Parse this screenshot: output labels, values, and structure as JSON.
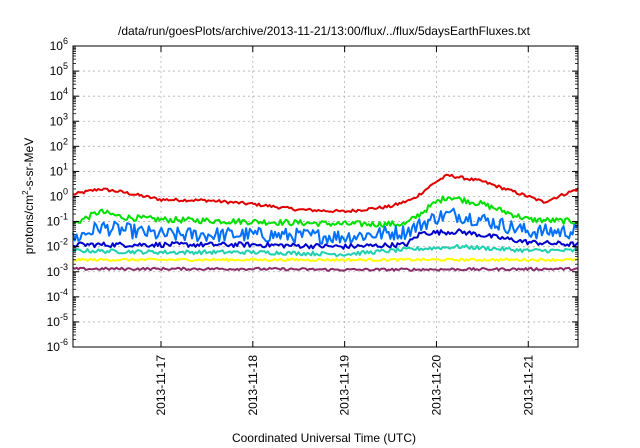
{
  "chart_data": {
    "type": "line",
    "title": "/data/run/goesPlots/archive/2013-11-21/13:00/flux/../flux/5daysEarthFluxes.txt",
    "xlabel": "Coordinated Universal Time (UTC)",
    "ylabel": {
      "pre": "protons/cm",
      "sup": "2",
      "post": "-s-sr-MeV"
    },
    "y_scale": "log",
    "ylim": [
      1e-06,
      1000000.0
    ],
    "y_ticks": [
      {
        "value": 1e-06,
        "base": "10",
        "exp": "-6"
      },
      {
        "value": 1e-05,
        "base": "10",
        "exp": "-5"
      },
      {
        "value": 0.0001,
        "base": "10",
        "exp": "-4"
      },
      {
        "value": 0.001,
        "base": "10",
        "exp": "-3"
      },
      {
        "value": 0.01,
        "base": "10",
        "exp": "-2"
      },
      {
        "value": 0.1,
        "base": "10",
        "exp": "-1"
      },
      {
        "value": 1,
        "base": "10",
        "exp": "0"
      },
      {
        "value": 10,
        "base": "10",
        "exp": "1"
      },
      {
        "value": 100,
        "base": "10",
        "exp": "2"
      },
      {
        "value": 1000,
        "base": "10",
        "exp": "3"
      },
      {
        "value": 10000.0,
        "base": "10",
        "exp": "4"
      },
      {
        "value": 100000.0,
        "base": "10",
        "exp": "5"
      },
      {
        "value": 1000000.0,
        "base": "10",
        "exp": "6"
      }
    ],
    "xlim": [
      "2013-11-16 01:00",
      "2013-11-21 13:00"
    ],
    "x_ticks": [
      "2013-11-17",
      "2013-11-18",
      "2013-11-19",
      "2013-11-20",
      "2013-11-21"
    ],
    "grid": true,
    "legend": "none",
    "series": [
      {
        "color": "#e00000",
        "noise": 0.06,
        "points": [
          [
            "2013-11-16 01:00",
            1.2
          ],
          [
            "2013-11-16 08:00",
            2.0
          ],
          [
            "2013-11-16 14:00",
            1.5
          ],
          [
            "2013-11-17 00:00",
            0.75
          ],
          [
            "2013-11-17 12:00",
            0.7
          ],
          [
            "2013-11-18 00:00",
            0.5
          ],
          [
            "2013-11-18 12:00",
            0.3
          ],
          [
            "2013-11-19 00:00",
            0.25
          ],
          [
            "2013-11-19 12:00",
            0.4
          ],
          [
            "2013-11-19 18:00",
            0.8
          ],
          [
            "2013-11-20 00:00",
            4.0
          ],
          [
            "2013-11-20 03:00",
            7.0
          ],
          [
            "2013-11-20 12:00",
            4.0
          ],
          [
            "2013-11-21 00:00",
            1.0
          ],
          [
            "2013-11-21 04:00",
            0.6
          ],
          [
            "2013-11-21 13:00",
            2.0
          ]
        ]
      },
      {
        "color": "#00e000",
        "noise": 0.12,
        "points": [
          [
            "2013-11-16 01:00",
            0.08
          ],
          [
            "2013-11-16 08:00",
            0.25
          ],
          [
            "2013-11-16 14:00",
            0.15
          ],
          [
            "2013-11-17 00:00",
            0.12
          ],
          [
            "2013-11-18 00:00",
            0.1
          ],
          [
            "2013-11-19 00:00",
            0.08
          ],
          [
            "2013-11-19 16:00",
            0.08
          ],
          [
            "2013-11-20 00:00",
            0.6
          ],
          [
            "2013-11-20 03:00",
            1.0
          ],
          [
            "2013-11-20 12:00",
            0.5
          ],
          [
            "2013-11-21 00:00",
            0.12
          ],
          [
            "2013-11-21 13:00",
            0.1
          ]
        ]
      },
      {
        "color": "#0070ff",
        "noise": 0.3,
        "points": [
          [
            "2013-11-16 01:00",
            0.02
          ],
          [
            "2013-11-16 08:00",
            0.06
          ],
          [
            "2013-11-17 00:00",
            0.03
          ],
          [
            "2013-11-18 00:00",
            0.03
          ],
          [
            "2013-11-19 00:00",
            0.025
          ],
          [
            "2013-11-19 16:00",
            0.04
          ],
          [
            "2013-11-20 00:00",
            0.15
          ],
          [
            "2013-11-20 04:00",
            0.2
          ],
          [
            "2013-11-20 12:00",
            0.12
          ],
          [
            "2013-11-21 00:00",
            0.04
          ],
          [
            "2013-11-21 13:00",
            0.04
          ]
        ]
      },
      {
        "color": "#0000cc",
        "noise": 0.1,
        "points": [
          [
            "2013-11-16 01:00",
            0.012
          ],
          [
            "2013-11-17 00:00",
            0.012
          ],
          [
            "2013-11-18 00:00",
            0.012
          ],
          [
            "2013-11-19 00:00",
            0.01
          ],
          [
            "2013-11-19 16:00",
            0.012
          ],
          [
            "2013-11-19 20:00",
            0.035
          ],
          [
            "2013-11-20 06:00",
            0.04
          ],
          [
            "2013-11-21 00:00",
            0.015
          ],
          [
            "2013-11-21 13:00",
            0.012
          ]
        ]
      },
      {
        "color": "#20d0b0",
        "noise": 0.08,
        "points": [
          [
            "2013-11-16 01:00",
            0.007
          ],
          [
            "2013-11-17 00:00",
            0.006
          ],
          [
            "2013-11-18 00:00",
            0.006
          ],
          [
            "2013-11-19 00:00",
            0.005
          ],
          [
            "2013-11-19 18:00",
            0.008
          ],
          [
            "2013-11-20 06:00",
            0.01
          ],
          [
            "2013-11-21 00:00",
            0.007
          ],
          [
            "2013-11-21 13:00",
            0.007
          ]
        ]
      },
      {
        "color": "#ffff00",
        "noise": 0.05,
        "points": [
          [
            "2013-11-16 01:00",
            0.003
          ],
          [
            "2013-11-19 00:00",
            0.003
          ],
          [
            "2013-11-20 00:00",
            0.003
          ],
          [
            "2013-11-21 13:00",
            0.003
          ]
        ]
      },
      {
        "color": "#8b2b6b",
        "noise": 0.05,
        "points": [
          [
            "2013-11-16 01:00",
            0.0013
          ],
          [
            "2013-11-18 00:00",
            0.0013
          ],
          [
            "2013-11-19 00:00",
            0.0012
          ],
          [
            "2013-11-21 13:00",
            0.0013
          ]
        ]
      }
    ]
  }
}
